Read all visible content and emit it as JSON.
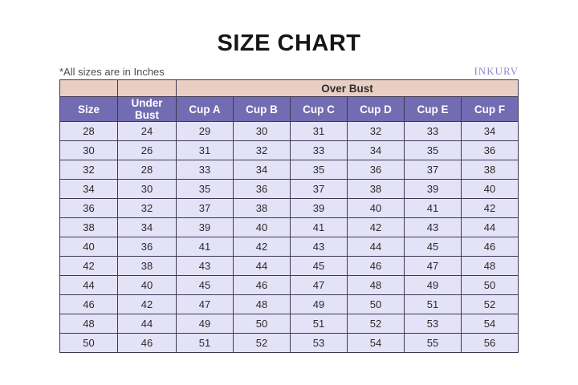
{
  "page": {
    "title": "SIZE CHART",
    "note": "*All sizes are in Inches",
    "brand": "INKURV"
  },
  "colors": {
    "over_bust_band_bg": "#e9cfc3",
    "header_bg": "#726cb3",
    "header_text": "#ffffff",
    "data_row_bg": "#e4e2f6",
    "border": "#3e3856",
    "brand_text": "#9289cb",
    "title_text": "#161616"
  },
  "chart_data": {
    "type": "table",
    "title": "SIZE CHART",
    "note": "*All sizes are in Inches",
    "brand": "INKURV",
    "units": "Inches",
    "over_bust_label": "Over Bust",
    "over_bust_span_columns": [
      "Cup A",
      "Cup B",
      "Cup C",
      "Cup D",
      "Cup E",
      "Cup F"
    ],
    "columns": [
      "Size",
      "Under Bust",
      "Cup A",
      "Cup B",
      "Cup C",
      "Cup D",
      "Cup E",
      "Cup F"
    ],
    "rows": [
      [
        28,
        24,
        29,
        30,
        31,
        32,
        33,
        34
      ],
      [
        30,
        26,
        31,
        32,
        33,
        34,
        35,
        36
      ],
      [
        32,
        28,
        33,
        34,
        35,
        36,
        37,
        38
      ],
      [
        34,
        30,
        35,
        36,
        37,
        38,
        39,
        40
      ],
      [
        36,
        32,
        37,
        38,
        39,
        40,
        41,
        42
      ],
      [
        38,
        34,
        39,
        40,
        41,
        42,
        43,
        44
      ],
      [
        40,
        36,
        41,
        42,
        43,
        44,
        45,
        46
      ],
      [
        42,
        38,
        43,
        44,
        45,
        46,
        47,
        48
      ],
      [
        44,
        40,
        45,
        46,
        47,
        48,
        49,
        50
      ],
      [
        46,
        42,
        47,
        48,
        49,
        50,
        51,
        52
      ],
      [
        48,
        44,
        49,
        50,
        51,
        52,
        53,
        54
      ],
      [
        50,
        46,
        51,
        52,
        53,
        54,
        55,
        56
      ]
    ]
  }
}
